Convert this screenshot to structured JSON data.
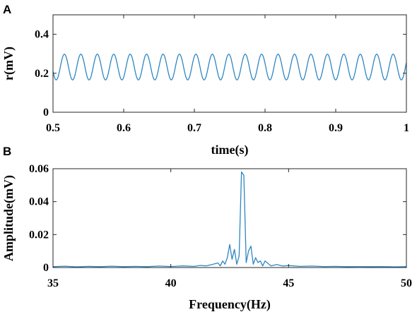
{
  "colors": {
    "series": "#2E86C1",
    "axis": "#262626"
  },
  "chart_data": [
    {
      "panel": "A",
      "type": "line",
      "title": "",
      "xlabel": "time(s)",
      "ylabel": "r(mV)",
      "xlim": [
        0.5,
        1.0
      ],
      "ylim": [
        0,
        0.5
      ],
      "xticks": [
        0.5,
        0.6,
        0.7,
        0.8,
        0.9,
        1.0
      ],
      "xtick_labels": [
        "0.5",
        "0.6",
        "0.7",
        "0.8",
        "0.9",
        "1"
      ],
      "yticks": [
        0,
        0.2,
        0.4
      ],
      "ytick_labels": [
        "0",
        "0.2",
        "0.4"
      ],
      "grid": false,
      "series": [
        {
          "signal": "sinusoid",
          "frequency_hz": 43,
          "offset_mv": 0.232,
          "amplitude_mv": 0.066,
          "x_range": [
            0.5,
            1.0
          ]
        }
      ]
    },
    {
      "panel": "B",
      "type": "line",
      "title": "",
      "xlabel": "Frequency(Hz)",
      "ylabel": "Amplitude(mV)",
      "xlim": [
        35,
        50
      ],
      "ylim": [
        0,
        0.06
      ],
      "xticks": [
        35,
        40,
        45,
        50
      ],
      "xtick_labels": [
        "35",
        "40",
        "45",
        "50"
      ],
      "yticks": [
        0,
        0.02,
        0.04,
        0.06
      ],
      "ytick_labels": [
        "0",
        "0.02",
        "0.04",
        "0.06"
      ],
      "grid": false,
      "series": [
        {
          "x": [
            35,
            35.5,
            36,
            36.5,
            37,
            37.5,
            38,
            38.5,
            39,
            39.5,
            40,
            40.5,
            41,
            41.25,
            41.5,
            41.75,
            42,
            42.1,
            42.2,
            42.3,
            42.4,
            42.5,
            42.6,
            42.7,
            42.8,
            42.9,
            43,
            43.1,
            43.2,
            43.3,
            43.4,
            43.5,
            43.6,
            43.7,
            43.8,
            43.9,
            44,
            44.25,
            44.5,
            44.75,
            45,
            45.5,
            46,
            46.5,
            47,
            47.5,
            48,
            48.5,
            49,
            49.5,
            50
          ],
          "y": [
            0.0005,
            0.0008,
            0.0004,
            0.0007,
            0.0005,
            0.0008,
            0.0005,
            0.0007,
            0.0005,
            0.0009,
            0.0006,
            0.001,
            0.0007,
            0.0013,
            0.001,
            0.0018,
            0.0028,
            0.001,
            0.004,
            0.002,
            0.006,
            0.014,
            0.005,
            0.011,
            0.002,
            0.007,
            0.058,
            0.056,
            0.003,
            0.01,
            0.013,
            0.002,
            0.006,
            0.003,
            0.004,
            0.001,
            0.004,
            0.001,
            0.0018,
            0.0009,
            0.0012,
            0.0007,
            0.0009,
            0.0006,
            0.0007,
            0.0005,
            0.0006,
            0.0005,
            0.0006,
            0.0004,
            0.0005
          ]
        }
      ]
    }
  ],
  "panels": [
    {
      "letter": "A"
    },
    {
      "letter": "B"
    }
  ]
}
